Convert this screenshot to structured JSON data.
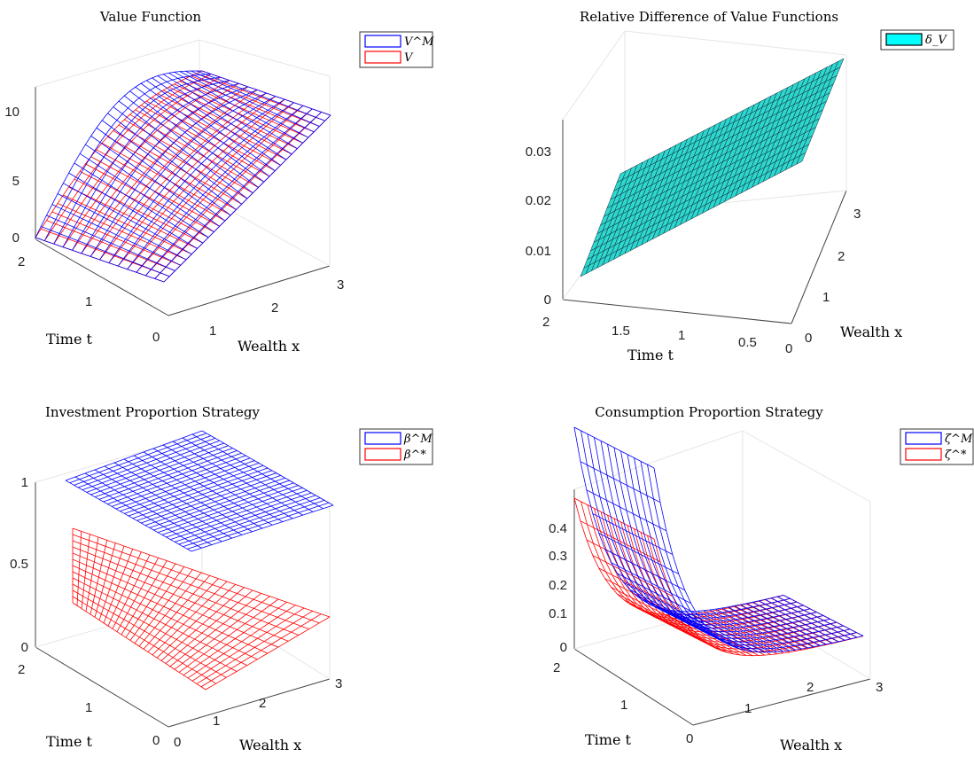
{
  "chart_data": [
    {
      "type": "surface",
      "title": "Value Function",
      "xlabel": "Wealth x",
      "ylabel": "Time t",
      "zlabel": "",
      "xlim": [
        0,
        3
      ],
      "ylim": [
        0,
        2
      ],
      "zlim": [
        0,
        12
      ],
      "xticks": [
        "1",
        "2",
        "3"
      ],
      "xtick_values": [
        1,
        2,
        3
      ],
      "yticks": [
        "0",
        "1",
        "2"
      ],
      "ytick_values": [
        0,
        1,
        2
      ],
      "zticks": [
        "0",
        "5",
        "10"
      ],
      "ztick_values": [
        0,
        5,
        10
      ],
      "grid": true,
      "legend_position": "top-right",
      "legend": [
        "V^M",
        "V"
      ],
      "series": [
        {
          "name": "V^M",
          "color": "#0000ff",
          "kind": "mesh",
          "x": [
            0,
            3
          ],
          "y": [
            0,
            2
          ],
          "z_description": "rises with wealth and time-to-go",
          "corners": {
            "x0_t0": 0.0,
            "x3_t0": 9.3,
            "x0_t2": 1.0,
            "x3_t2": 9.8
          }
        },
        {
          "name": "V",
          "color": "#ff0000",
          "kind": "mesh",
          "x": [
            0,
            3
          ],
          "y": [
            0,
            2
          ],
          "corners": {
            "x0_t0": 0.0,
            "x3_t0": 9.3,
            "x0_t2": 0.9,
            "x3_t2": 9.6
          }
        }
      ]
    },
    {
      "type": "surface",
      "title": "Relative Difference of Value Functions",
      "xlabel": "Time t",
      "ylabel": "Wealth x",
      "zlabel": "",
      "xlim": [
        0,
        2
      ],
      "ylim": [
        0,
        3
      ],
      "zlim": [
        0,
        0.035
      ],
      "xticks": [
        "2",
        "1.5",
        "1",
        "0.5",
        "0"
      ],
      "xtick_values": [
        2,
        1.5,
        1,
        0.5,
        0
      ],
      "yticks": [
        "0",
        "1",
        "2",
        "3"
      ],
      "ytick_values": [
        0,
        1,
        2,
        3
      ],
      "zticks": [
        "0",
        "0.01",
        "0.02",
        "0.03"
      ],
      "ztick_values": [
        0,
        0.01,
        0.02,
        0.03
      ],
      "grid": true,
      "legend_position": "top-right",
      "legend": [
        "δ_V"
      ],
      "series": [
        {
          "name": "δ_V",
          "color": "#00ffff",
          "kind": "faceted",
          "x": [
            0,
            2
          ],
          "y": [
            0,
            3
          ],
          "corners": {
            "t2_x0": 0.004,
            "t2_x3": 0.024,
            "t0_x0": 0.022,
            "t0_x3": 0.04
          }
        }
      ]
    },
    {
      "type": "surface",
      "title": "Investment Proportion Strategy",
      "xlabel": "Wealth x",
      "ylabel": "Time t",
      "zlabel": "",
      "xlim": [
        0,
        3
      ],
      "ylim": [
        0,
        2
      ],
      "zlim": [
        0,
        1.1
      ],
      "xticks": [
        "0",
        "1",
        "2",
        "3"
      ],
      "xtick_values": [
        0,
        1,
        2,
        3
      ],
      "yticks": [
        "0",
        "1",
        "2"
      ],
      "ytick_values": [
        0,
        1,
        2
      ],
      "zticks": [
        "0",
        "0.5",
        "1"
      ],
      "ztick_values": [
        0,
        0.5,
        1
      ],
      "grid": true,
      "legend_position": "top-right",
      "legend": [
        "β^M",
        "β^*"
      ],
      "series": [
        {
          "name": "β^M",
          "color": "#0000ff",
          "kind": "mesh",
          "x": [
            0,
            3
          ],
          "y": [
            0,
            2
          ],
          "constant": 1.0
        },
        {
          "name": "β^*",
          "color": "#ff0000",
          "kind": "mesh",
          "x": [
            0,
            3
          ],
          "y": [
            0,
            2
          ],
          "corners": {
            "x0_t0": 0.3,
            "x3_t0": 0.2,
            "x0_t2": 0.72,
            "x3_t2": 0.25
          }
        }
      ]
    },
    {
      "type": "surface",
      "title": "Consumption Proportion Strategy",
      "xlabel": "Wealth x",
      "ylabel": "Time t",
      "zlabel": "",
      "xlim": [
        0,
        3
      ],
      "ylim": [
        0,
        2
      ],
      "zlim": [
        0,
        0.5
      ],
      "xticks": [
        "1",
        "2",
        "3"
      ],
      "xtick_values": [
        1,
        2,
        3
      ],
      "yticks": [
        "0",
        "1",
        "2"
      ],
      "ytick_values": [
        0,
        1,
        2
      ],
      "zticks": [
        "0",
        "0.1",
        "0.2",
        "0.3",
        "0.4"
      ],
      "ztick_values": [
        0,
        0.1,
        0.2,
        0.3,
        0.4
      ],
      "grid": true,
      "legend_position": "top-right",
      "legend": [
        "ζ^M",
        "ζ^*"
      ],
      "series": [
        {
          "name": "ζ^M",
          "color": "#0000ff",
          "kind": "mesh",
          "x": [
            0,
            3
          ],
          "y": [
            0,
            2
          ],
          "corners": {
            "x0_t2": 0.48,
            "x0_t0": 0.48,
            "x3_t0": 0.02,
            "x3_t2": 0.01
          }
        },
        {
          "name": "ζ^*",
          "color": "#ff0000",
          "kind": "mesh",
          "x": [
            0,
            3
          ],
          "y": [
            0,
            2
          ],
          "corners": {
            "x0_t2": 0.3,
            "x0_t0": 0.3,
            "x3_t0": 0.01,
            "x3_t2": 0.01
          }
        }
      ]
    }
  ]
}
